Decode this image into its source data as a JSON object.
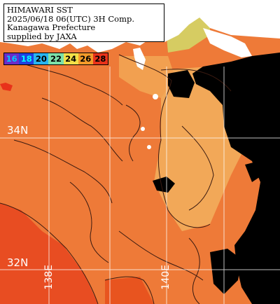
{
  "title_lines": [
    "HIMAWARI SST",
    "2025/06/18 06(UTC) 3H Comp.",
    "Kanagawa Prefecture",
    "supplied by JAXA"
  ],
  "legend": [
    {
      "label": "16",
      "color": "#6a2cc8",
      "text": "#00c8ff"
    },
    {
      "label": "18",
      "color": "#2040e0",
      "text": "#00ffff"
    },
    {
      "label": "20",
      "color": "#28b4f0",
      "text": "#000000"
    },
    {
      "label": "22",
      "color": "#7ce0a8",
      "text": "#000000"
    },
    {
      "label": "24",
      "color": "#f2e048",
      "text": "#000000"
    },
    {
      "label": "26",
      "color": "#f39a2a",
      "text": "#000000"
    },
    {
      "label": "28",
      "color": "#e8321a",
      "text": "#000000"
    }
  ],
  "grid_labels": {
    "lat_34": "34N",
    "lat_32": "32N",
    "lon_138": "138E",
    "lon_140": "140E"
  },
  "colors": {
    "sst_warm": "#ee7a38",
    "sst_hot": "#e85020",
    "sst_cool": "#f1aa55",
    "sst_coolest": "#d9ce62",
    "land": "#ffffff",
    "no_data_cloud": "#000000",
    "grid": "#ffffff"
  }
}
